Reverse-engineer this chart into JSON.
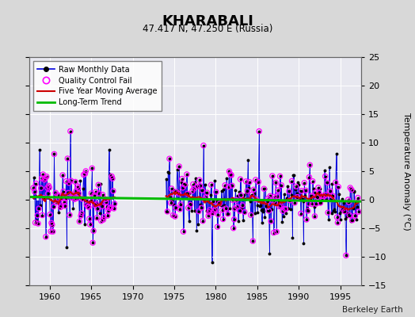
{
  "title": "KHARABALI",
  "subtitle": "47.417 N, 47.250 E (Russia)",
  "credit": "Berkeley Earth",
  "ylabel": "Temperature Anomaly (°C)",
  "xlim": [
    1957.5,
    1997.5
  ],
  "ylim": [
    -15,
    25
  ],
  "yticks": [
    -15,
    -10,
    -5,
    0,
    5,
    10,
    15,
    20,
    25
  ],
  "xticks": [
    1960,
    1965,
    1970,
    1975,
    1980,
    1985,
    1990,
    1995
  ],
  "bg_color": "#d8d8d8",
  "plot_bg_color": "#e8e8f0",
  "grid_color": "#ffffff",
  "line_color": "#0000dd",
  "marker_color": "#000000",
  "qc_color": "#ff00ff",
  "moving_avg_color": "#cc0000",
  "trend_color": "#00bb00",
  "seed": 12
}
